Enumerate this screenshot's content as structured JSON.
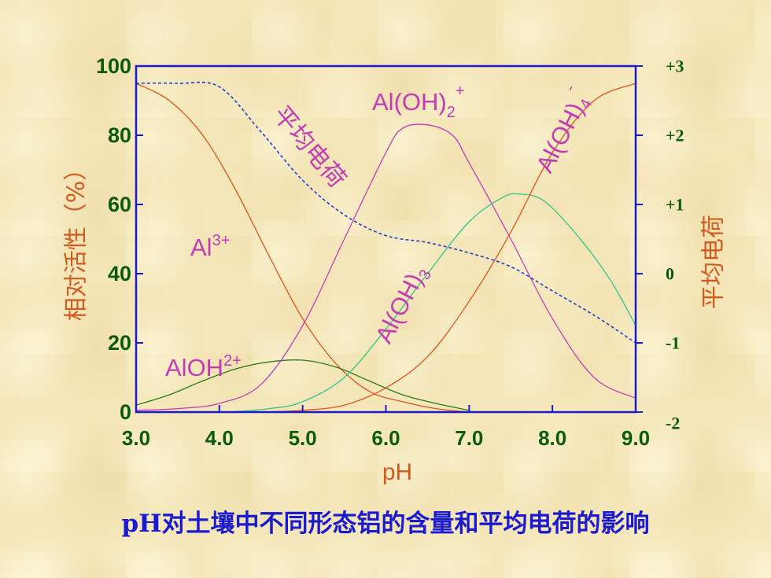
{
  "chart_data": {
    "type": "line",
    "title": "",
    "xlabel": "pH",
    "ylabel": "相对活性（%）",
    "y2label": "平均电荷",
    "xlim": [
      3.0,
      9.0
    ],
    "ylim": [
      0,
      100
    ],
    "y2lim": [
      -2,
      3
    ],
    "x_ticks": [
      "3.0",
      "4.0",
      "5.0",
      "6.0",
      "7.0",
      "8.0",
      "9.0"
    ],
    "y_ticks": [
      "0",
      "20",
      "40",
      "60",
      "80",
      "100"
    ],
    "y2_ticks": [
      "-2",
      "-1",
      "0",
      "+1",
      "+2",
      "+3"
    ],
    "grid": false,
    "series": [
      {
        "name": "Al3+",
        "color": "#d8541c",
        "dash": false,
        "axis": "left",
        "x": [
          3.0,
          3.4,
          3.8,
          4.2,
          4.6,
          5.0,
          5.4,
          5.8,
          6.2,
          6.6,
          7.0
        ],
        "y": [
          95,
          90,
          80,
          64,
          45,
          27,
          14,
          6,
          3,
          1,
          0
        ]
      },
      {
        "name": "AlOH2+",
        "color": "#2a7a1a",
        "dash": false,
        "axis": "left",
        "x": [
          3.0,
          3.4,
          3.8,
          4.2,
          4.6,
          5.0,
          5.4,
          5.8,
          6.2,
          6.6,
          7.0
        ],
        "y": [
          2,
          5,
          9,
          12.5,
          14.5,
          15,
          13,
          9,
          5,
          2.5,
          0.5
        ]
      },
      {
        "name": "Al(OH)2+",
        "color": "#c23cb4",
        "dash": false,
        "axis": "left",
        "x": [
          3.0,
          3.5,
          4.0,
          4.5,
          5.0,
          5.5,
          6.0,
          6.2,
          6.5,
          6.8,
          7.0,
          7.5,
          8.0,
          8.5,
          9.0
        ],
        "y": [
          0.5,
          1,
          2.5,
          8,
          25,
          50,
          75,
          82,
          83,
          80,
          72,
          50,
          27,
          10,
          4
        ]
      },
      {
        "name": "Al(OH)3",
        "color": "#2ec48a",
        "dash": false,
        "axis": "left",
        "x": [
          4.1,
          4.6,
          5.0,
          5.5,
          6.0,
          6.5,
          7.0,
          7.4,
          7.6,
          7.9,
          8.3,
          8.7,
          9.0
        ],
        "y": [
          0,
          1,
          3,
          10,
          24,
          40,
          55,
          62,
          63,
          61,
          51,
          38,
          25
        ]
      },
      {
        "name": "Al(OH)4-",
        "color": "#e0541c",
        "dash": false,
        "axis": "left",
        "x": [
          4.5,
          5.0,
          5.5,
          6.0,
          6.5,
          7.0,
          7.5,
          8.0,
          8.5,
          9.0
        ],
        "y": [
          0,
          0.5,
          2,
          7,
          16,
          32,
          52,
          75,
          90,
          95
        ]
      },
      {
        "name": "平均电荷",
        "color": "#1f3fd0",
        "dash": true,
        "axis": "right",
        "x": [
          3.0,
          3.5,
          4.0,
          4.5,
          5.0,
          5.5,
          6.0,
          6.5,
          7.0,
          7.5,
          8.0,
          8.5,
          9.0
        ],
        "y": [
          2.75,
          2.75,
          2.7,
          2.05,
          1.35,
          0.85,
          0.55,
          0.45,
          0.3,
          0.1,
          -0.25,
          -0.6,
          -1.0
        ]
      }
    ],
    "annotations": [
      {
        "text": "平均电荷",
        "color": "#c23cb4"
      },
      {
        "text": "Al(OH)",
        "sub": "2",
        "sup": "+",
        "color": "#c23cb4"
      },
      {
        "text": "Al(OH)",
        "sub": "4",
        "sup": "-",
        "color": "#c23cb4"
      },
      {
        "text": "Al",
        "sup": "3+",
        "color": "#c23cb4"
      },
      {
        "text": "Al(OH)",
        "sub": "3",
        "color": "#c23cb4"
      },
      {
        "text": "AlOH",
        "sup": "2+",
        "color": "#c23cb4"
      }
    ]
  },
  "caption": "pH对土壤中不同形态铝的含量和平均电荷的影响",
  "colors": {
    "background": "#f4e6b8",
    "axis": "#1a1ad0",
    "tick_text": "#0a5c0a",
    "axis_label": "#d35a1e",
    "caption": "#1a1ad0"
  }
}
